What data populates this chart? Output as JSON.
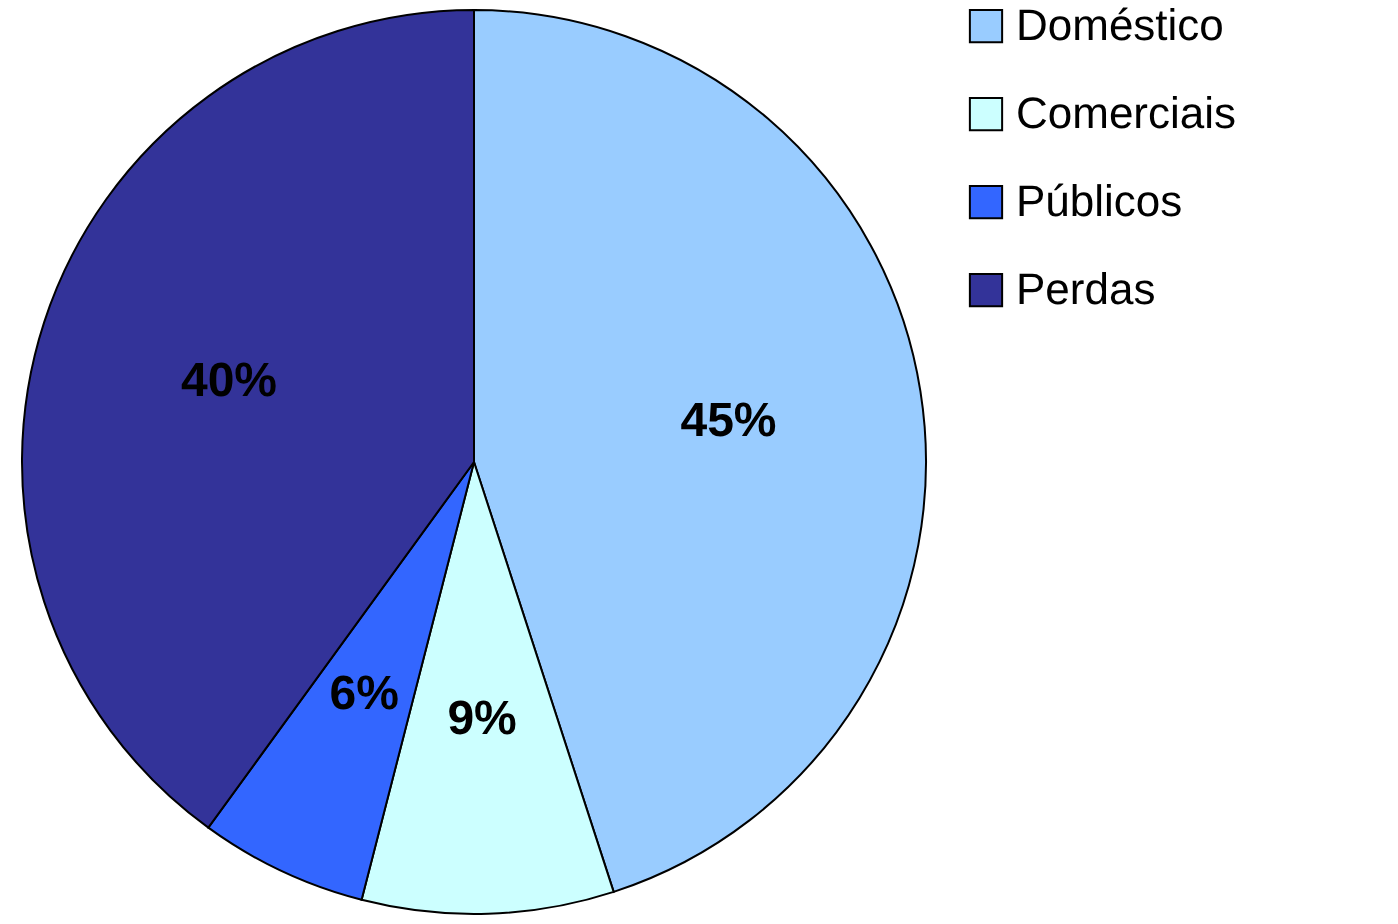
{
  "chart_data": {
    "type": "pie",
    "categories": [
      "Doméstico",
      "Comerciais",
      "Públicos",
      "Perdas"
    ],
    "values": [
      45,
      9,
      6,
      40
    ],
    "colors": [
      "#99ccff",
      "#ccffff",
      "#3366ff",
      "#333399"
    ],
    "value_labels": [
      "45%",
      "9%",
      "6%",
      "40%"
    ],
    "legend": "right"
  }
}
